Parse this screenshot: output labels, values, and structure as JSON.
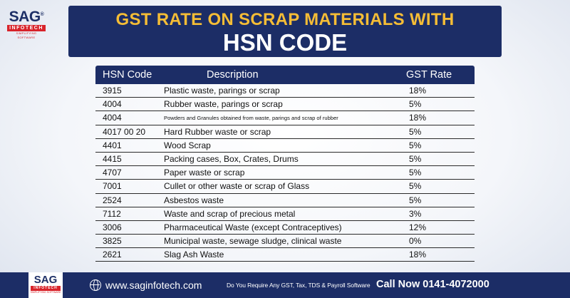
{
  "logo": {
    "brand": "SAG",
    "reg": "®",
    "bar": "INFOTECH",
    "tagline": "SIMPLIFYING SOFTWARE"
  },
  "title": {
    "line1": "GST RATE ON SCRAP MATERIALS WITH",
    "line2": "HSN CODE"
  },
  "table": {
    "headers": {
      "code": "HSN Code",
      "description": "Description",
      "rate": "GST Rate"
    },
    "rows": [
      {
        "code": "3915",
        "description": "Plastic waste, parings or scrap",
        "rate": "18%"
      },
      {
        "code": "4004",
        "description": "Rubber waste, parings or scrap",
        "rate": "5%"
      },
      {
        "code": "4004",
        "description": "Powders and Granules obtained from waste, parings and scrap of rubber",
        "rate": "18%"
      },
      {
        "code": "4017 00 20",
        "description": "Hard Rubber waste or scrap",
        "rate": "5%"
      },
      {
        "code": "4401",
        "description": "Wood Scrap",
        "rate": "5%"
      },
      {
        "code": "4415",
        "description": "Packing cases, Box, Crates, Drums",
        "rate": "5%"
      },
      {
        "code": "4707",
        "description": "Paper waste or scrap",
        "rate": "5%"
      },
      {
        "code": "7001",
        "description": "Cullet or other waste or scrap of Glass",
        "rate": "5%"
      },
      {
        "code": "2524",
        "description": "Asbestos waste",
        "rate": "5%"
      },
      {
        "code": "7112",
        "description": "Waste and scrap of precious metal",
        "rate": "3%"
      },
      {
        "code": "3006",
        "description": "Pharmaceutical Waste (except Contraceptives)",
        "rate": "12%"
      },
      {
        "code": "3825",
        "description": "Municipal waste, sewage sludge, clinical waste",
        "rate": "0%"
      },
      {
        "code": "2621",
        "description": "Slag Ash Waste",
        "rate": "18%"
      }
    ]
  },
  "footer": {
    "logo_brand": "SAG",
    "logo_bar": "INFOTECH",
    "logo_tag": "SIMPLIFYING SOFTWARE",
    "globe_icon": "globe-icon",
    "website": "www.saginfotech.com",
    "require_text": "Do You Require Any GST, Tax, TDS & Payroll Software",
    "call_text": "Call Now 0141-4072000"
  },
  "colors": {
    "navy": "#1c2d66",
    "gold": "#f5bd36",
    "red": "#d8232a"
  }
}
